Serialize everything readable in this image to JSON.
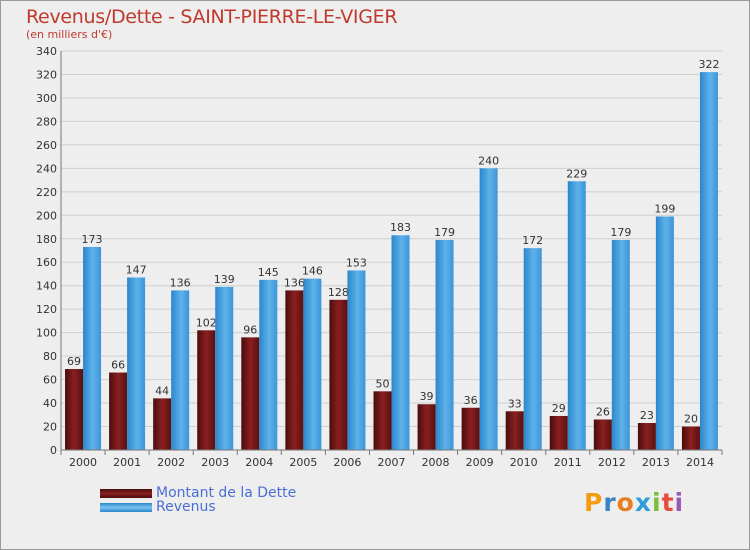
{
  "title": "Revenus/Dette - SAINT-PIERRE-LE-VIGER",
  "subtitle": "(en milliers d'€)",
  "legend": {
    "debt_label": "Montant de la Dette",
    "revenue_label": "Revenus"
  },
  "logo": {
    "letters": [
      "P",
      "r",
      "o",
      "x",
      "i",
      "t",
      "i"
    ],
    "colors": [
      "#f39c12",
      "#3b82c4",
      "#e67e22",
      "#2c9fd8",
      "#7cbd3a",
      "#e74c3c",
      "#9b59b6"
    ]
  },
  "colors": {
    "debt": "#7b1a1a",
    "revenue": "#3f9fe0",
    "title": "#c0392b"
  },
  "chart_data": {
    "type": "bar",
    "categories": [
      "2000",
      "2001",
      "2002",
      "2003",
      "2004",
      "2005",
      "2006",
      "2007",
      "2008",
      "2009",
      "2010",
      "2011",
      "2012",
      "2013",
      "2014"
    ],
    "series": [
      {
        "name": "Montant de la Dette",
        "values": [
          69,
          66,
          44,
          102,
          96,
          136,
          128,
          50,
          39,
          36,
          33,
          29,
          26,
          23,
          20
        ]
      },
      {
        "name": "Revenus",
        "values": [
          173,
          147,
          136,
          139,
          145,
          146,
          153,
          183,
          179,
          240,
          172,
          229,
          179,
          199,
          322
        ]
      }
    ],
    "ylim": [
      0,
      340
    ],
    "yticks": [
      0,
      20,
      40,
      60,
      80,
      100,
      120,
      140,
      160,
      180,
      200,
      220,
      240,
      260,
      280,
      300,
      320,
      340
    ],
    "grid": true
  }
}
